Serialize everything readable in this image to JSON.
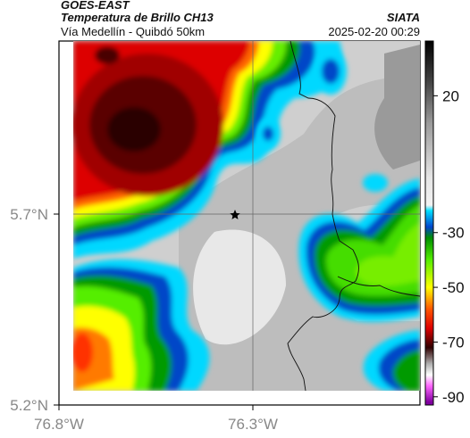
{
  "header": {
    "satellite": "GOES-EAST",
    "product": "Temperatura de Brillo CH13",
    "organization": "SIATA",
    "region": "Vía Medellín - Quibdó 50km",
    "timestamp": "2025-02-20 00:29"
  },
  "map": {
    "lat_ticks": [
      {
        "value": 5.7,
        "label": "5.7°N"
      },
      {
        "value": 5.2,
        "label": "5.2°N"
      }
    ],
    "lon_ticks": [
      {
        "value": -76.8,
        "label": "76.8°W"
      },
      {
        "value": -76.3,
        "label": "76.3°W"
      }
    ],
    "marker_icon": "star-icon"
  },
  "colorbar": {
    "ticks": [
      {
        "value": 20,
        "label": "20"
      },
      {
        "value": -30,
        "label": "-30"
      },
      {
        "value": -50,
        "label": "-50"
      },
      {
        "value": -70,
        "label": "-70"
      },
      {
        "value": -90,
        "label": "-90"
      }
    ],
    "stops": [
      {
        "value": 40,
        "color": "#000000"
      },
      {
        "value": 25,
        "color": "#444444"
      },
      {
        "value": 10,
        "color": "#9a9a9a"
      },
      {
        "value": -10,
        "color": "#e6e6e6"
      },
      {
        "value": -20,
        "color": "#f2f2f2"
      },
      {
        "value": -22,
        "color": "#00e0ff"
      },
      {
        "value": -28,
        "color": "#0044cc"
      },
      {
        "value": -32,
        "color": "#009000"
      },
      {
        "value": -40,
        "color": "#55ee00"
      },
      {
        "value": -50,
        "color": "#ffff00"
      },
      {
        "value": -58,
        "color": "#ff5500"
      },
      {
        "value": -65,
        "color": "#dd0000"
      },
      {
        "value": -72,
        "color": "#300000"
      },
      {
        "value": -78,
        "color": "#b0b0b0"
      },
      {
        "value": -82,
        "color": "#ffffff"
      },
      {
        "value": -86,
        "color": "#ff66ff"
      },
      {
        "value": -92,
        "color": "#8000a0"
      }
    ]
  }
}
